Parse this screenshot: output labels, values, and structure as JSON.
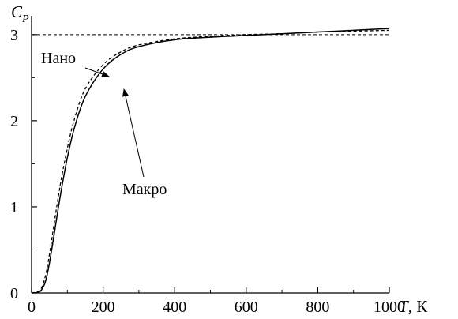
{
  "chart_data": {
    "type": "line",
    "xlabel": "T",
    "xunit": ", К",
    "ylabel": "C",
    "ylabel_subscript": "P",
    "xlim": [
      0,
      1000
    ],
    "ylim": [
      0,
      3.2
    ],
    "xticks": [
      0,
      200,
      400,
      600,
      800,
      1000
    ],
    "xtick_labels": [
      "0",
      "200",
      "400",
      "600",
      "800",
      "1000"
    ],
    "yticks": [
      0,
      1,
      2,
      3
    ],
    "ytick_labels": [
      "0",
      "1",
      "2",
      "3"
    ],
    "grid": false,
    "reference_lines": [
      {
        "axis": "y",
        "value": 3,
        "style": "dashed"
      }
    ],
    "series": [
      {
        "name": "Макро",
        "style": "solid",
        "x": [
          0,
          20,
          30,
          40,
          50,
          60,
          80,
          100,
          120,
          150,
          200,
          250,
          300,
          400,
          500,
          600,
          700,
          800,
          900,
          1000
        ],
        "y": [
          0,
          0.01,
          0.05,
          0.15,
          0.35,
          0.6,
          1.12,
          1.57,
          1.92,
          2.28,
          2.6,
          2.77,
          2.86,
          2.94,
          2.97,
          2.99,
          3.01,
          3.03,
          3.05,
          3.07
        ]
      },
      {
        "name": "Нано",
        "style": "dashed",
        "x": [
          0,
          20,
          30,
          40,
          50,
          60,
          80,
          100,
          120,
          150,
          200,
          250,
          300,
          400,
          500,
          600,
          700,
          800,
          900,
          1000
        ],
        "y": [
          0,
          0.02,
          0.08,
          0.22,
          0.45,
          0.72,
          1.25,
          1.68,
          2.02,
          2.37,
          2.65,
          2.8,
          2.88,
          2.95,
          2.98,
          3.0,
          3.01,
          3.03,
          3.04,
          3.05
        ]
      }
    ],
    "annotations": [
      {
        "text": "Нано",
        "series": "Нано",
        "arrow_to": {
          "x": 215,
          "y": 2.62
        }
      },
      {
        "text": "Макро",
        "series": "Макро",
        "arrow_to": {
          "x": 258,
          "y": 2.7
        }
      }
    ]
  }
}
